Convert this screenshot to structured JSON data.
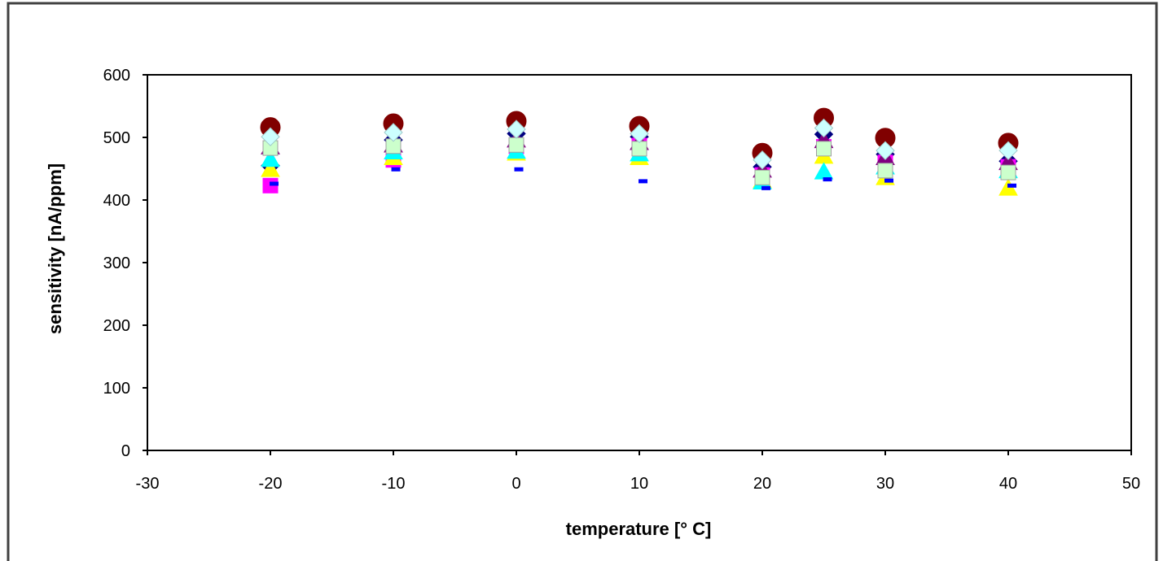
{
  "chart_data": {
    "type": "scatter",
    "xlabel": "temperature [° C]",
    "ylabel": "sensitivity [nA/ppm]",
    "xlim": [
      -30,
      50
    ],
    "ylim": [
      0,
      600
    ],
    "xticks": [
      -30,
      -20,
      -10,
      0,
      10,
      20,
      30,
      40,
      50
    ],
    "yticks": [
      0,
      100,
      200,
      300,
      400,
      500,
      600
    ],
    "grid": false,
    "legend": false,
    "x": [
      -20,
      -10,
      0,
      10,
      20,
      25,
      30,
      40
    ],
    "series": [
      {
        "marker": "diamond",
        "color": "#000080",
        "edge": "#000080",
        "values": [
          455,
          496,
          506,
          501,
          453,
          505,
          473,
          462
        ]
      },
      {
        "marker": "square",
        "color": "#FF00FF",
        "edge": "#FF00FF",
        "values": [
          423,
          464,
          486,
          487,
          440,
          485,
          460,
          453
        ]
      },
      {
        "marker": "triangle",
        "color": "#FFFF00",
        "edge": "#FFFF00",
        "values": [
          449,
          468,
          475,
          468,
          431,
          470,
          436,
          419
        ]
      },
      {
        "marker": "triangle",
        "color": "#00FFFF",
        "edge": "#00FFFF",
        "values": [
          465,
          477,
          478,
          474,
          429,
          445,
          453,
          447
        ]
      },
      {
        "marker": "triangle",
        "color": "#800080",
        "edge": "#800080",
        "values": [
          485,
          488,
          496,
          492,
          448,
          495,
          468,
          460
        ]
      },
      {
        "marker": "circle",
        "color": "#800000",
        "edge": "#800000",
        "values": [
          516,
          522,
          526,
          518,
          475,
          531,
          499,
          491
        ]
      },
      {
        "marker": "square",
        "color": "#CCFFCC",
        "edge": "#A0A0A0",
        "values": [
          483,
          486,
          488,
          482,
          436,
          482,
          447,
          444
        ]
      },
      {
        "marker": "diamond",
        "color": "#CCFFFF",
        "edge": "#9FC9C9",
        "values": [
          501,
          508,
          513,
          506,
          464,
          515,
          479,
          479
        ]
      },
      {
        "marker": "dash",
        "color": "#0000FF",
        "edge": "#0000FF",
        "x": [
          -19.7,
          -9.8,
          0.2,
          10.3,
          20.3,
          25.3,
          30.3,
          40.3
        ],
        "values": [
          426,
          449,
          449,
          430,
          419,
          433,
          431,
          423
        ]
      }
    ]
  }
}
